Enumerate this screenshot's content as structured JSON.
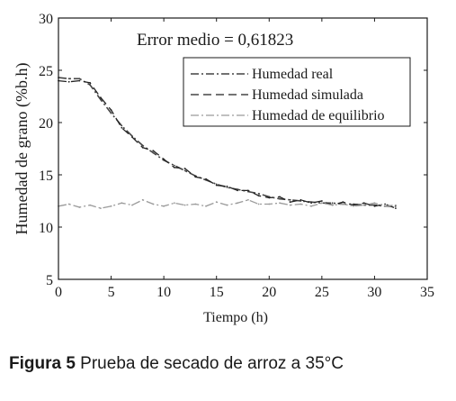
{
  "chart_data": {
    "type": "line",
    "annotation": "Error medio = 0,61823",
    "xlabel": "Tiempo (h)",
    "ylabel": "Humedad de grano (%b.h)",
    "xlim": [
      0,
      35
    ],
    "ylim": [
      5,
      30
    ],
    "xticks": [
      "0",
      "5",
      "10",
      "15",
      "20",
      "25",
      "30",
      "35"
    ],
    "yticks": [
      "5",
      "10",
      "15",
      "20",
      "25",
      "30"
    ],
    "grid": false,
    "legend_position": "top-right",
    "series": [
      {
        "name": "Humedad real",
        "style": "dashdot",
        "color": "#444444",
        "x": [
          0,
          1,
          2,
          3,
          4,
          5,
          6,
          7,
          8,
          9,
          10,
          11,
          12,
          13,
          14,
          15,
          16,
          17,
          18,
          19,
          20,
          21,
          22,
          23,
          24,
          25,
          26,
          27,
          28,
          29,
          30,
          31,
          32
        ],
        "y": [
          24.3,
          24.2,
          24.2,
          23.6,
          22.2,
          20.9,
          19.7,
          18.7,
          17.8,
          17.1,
          16.4,
          15.9,
          15.4,
          14.9,
          14.5,
          14.1,
          13.8,
          13.6,
          13.4,
          13.2,
          12.9,
          12.7,
          12.6,
          12.5,
          12.4,
          12.3,
          12.3,
          12.2,
          12.2,
          12.1,
          12.1,
          12.0,
          12.0
        ]
      },
      {
        "name": "Humedad simulada",
        "style": "dashed",
        "color": "#222222",
        "x": [
          0,
          1,
          2,
          3,
          4,
          5,
          6,
          7,
          8,
          9,
          10,
          11,
          12,
          13,
          14,
          15,
          16,
          17,
          18,
          19,
          20,
          21,
          22,
          23,
          24,
          25,
          26,
          27,
          28,
          29,
          30,
          31,
          32
        ],
        "y": [
          24.0,
          23.9,
          24.0,
          23.8,
          22.4,
          21.2,
          19.5,
          18.6,
          17.6,
          17.3,
          16.5,
          15.7,
          15.6,
          14.8,
          14.6,
          14.0,
          13.9,
          13.5,
          13.5,
          13.0,
          12.8,
          12.9,
          12.4,
          12.6,
          12.3,
          12.5,
          12.1,
          12.4,
          12.1,
          12.3,
          12.0,
          12.2,
          11.8
        ]
      },
      {
        "name": "Humedad de equilibrio",
        "style": "dashdot",
        "color": "#9a9a9a",
        "x": [
          0,
          1,
          2,
          3,
          4,
          5,
          6,
          7,
          8,
          9,
          10,
          11,
          12,
          13,
          14,
          15,
          16,
          17,
          18,
          19,
          20,
          21,
          22,
          23,
          24,
          25,
          26,
          27,
          28,
          29,
          30,
          31,
          32
        ],
        "y": [
          12.0,
          12.2,
          11.9,
          12.1,
          11.8,
          12.0,
          12.3,
          12.1,
          12.6,
          12.2,
          12.0,
          12.3,
          12.1,
          12.2,
          12.0,
          12.4,
          12.1,
          12.3,
          12.6,
          12.2,
          12.2,
          12.3,
          12.1,
          12.2,
          12.0,
          12.3,
          12.1,
          12.2,
          12.0,
          12.1,
          12.3,
          12.0,
          12.1
        ]
      }
    ]
  },
  "caption": {
    "label": "Figura 5",
    "text": " Prueba de secado de arroz a 35°C"
  }
}
